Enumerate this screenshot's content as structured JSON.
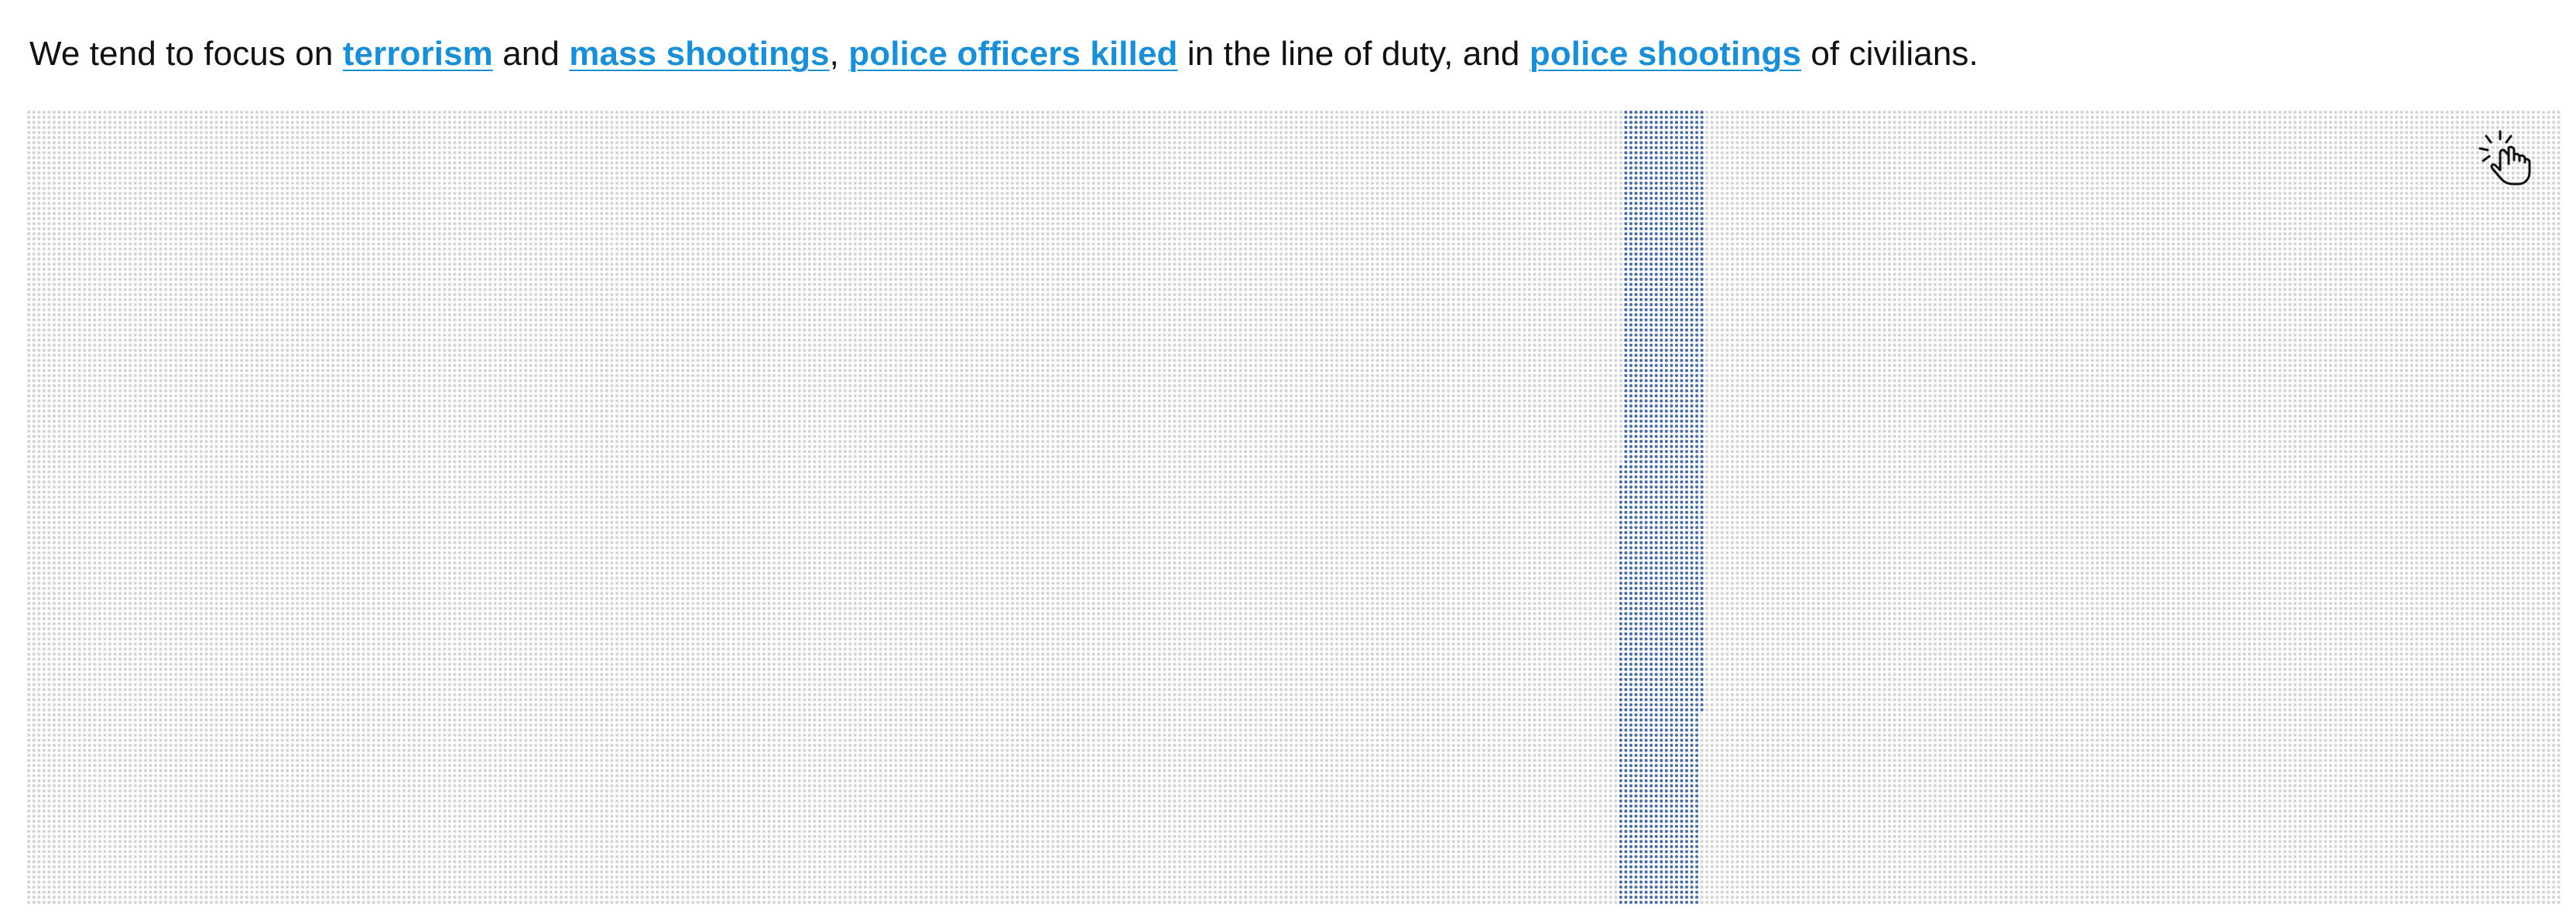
{
  "intro": {
    "prefix": "We tend to focus on",
    "links": {
      "terrorism": "terrorism",
      "mass_shootings": "mass shootings",
      "police_officers_killed": "police officers killed",
      "police_shootings": "police shootings"
    },
    "and_1": "and",
    "comma": ",",
    "middle": "in the line of duty, and",
    "suffix": "of civilians."
  },
  "icons": {
    "interaction_hint": "tap-hand-icon"
  },
  "colors": {
    "background_dot": "#d4d4d4",
    "highlight_dot": "#4b6ea6",
    "link": "#1b8fd6",
    "text": "#111111"
  }
}
